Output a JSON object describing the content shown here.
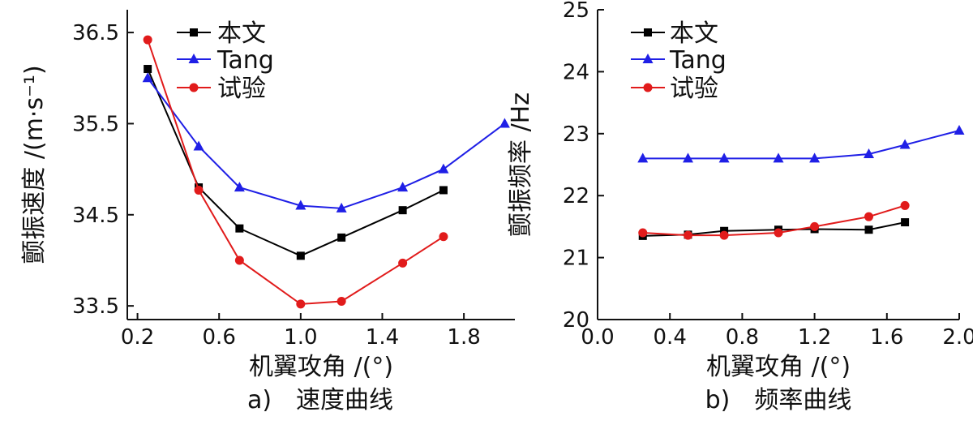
{
  "chart_data": [
    {
      "type": "line",
      "caption": "a)　速度曲线",
      "xlabel": "机翼攻角 /(°)",
      "ylabel": "颤振速度 /(m·s⁻¹)",
      "xlim": [
        0.15,
        2.05
      ],
      "ylim": [
        33.35,
        36.75
      ],
      "xticks": [
        "0.2",
        "0.6",
        "1.0",
        "1.4",
        "1.8"
      ],
      "yticks": [
        "33.5",
        "34.5",
        "35.5",
        "36.5"
      ],
      "grid": false,
      "legend_position": "top-left",
      "series": [
        {
          "name": "本文",
          "color": "#000000",
          "marker": "square",
          "x": [
            0.25,
            0.5,
            0.7,
            1.0,
            1.2,
            1.5,
            1.7
          ],
          "y": [
            36.1,
            34.8,
            34.35,
            34.05,
            34.25,
            34.55,
            34.77
          ]
        },
        {
          "name": "Tang",
          "color": "#1f1fe6",
          "marker": "triangle",
          "x": [
            0.25,
            0.5,
            0.7,
            1.0,
            1.2,
            1.5,
            1.7,
            2.0
          ],
          "y": [
            36.0,
            35.25,
            34.8,
            34.6,
            34.57,
            34.8,
            35.0,
            35.5
          ]
        },
        {
          "name": "试验",
          "color": "#e11b1b",
          "marker": "circle",
          "x": [
            0.25,
            0.5,
            0.7,
            1.0,
            1.2,
            1.5,
            1.7
          ],
          "y": [
            36.42,
            34.77,
            34.0,
            33.52,
            33.55,
            33.97,
            34.26
          ]
        }
      ]
    },
    {
      "type": "line",
      "caption": "b)　频率曲线",
      "xlabel": "机翼攻角 /(°)",
      "ylabel": "颤振频率 /Hz",
      "xlim": [
        0.0,
        2.0
      ],
      "ylim": [
        20,
        25
      ],
      "xticks": [
        "0.0",
        "0.4",
        "0.8",
        "1.2",
        "1.6",
        "2.0"
      ],
      "yticks": [
        "20",
        "21",
        "22",
        "23",
        "24",
        "25"
      ],
      "grid": false,
      "legend_position": "top-left",
      "series": [
        {
          "name": "本文",
          "color": "#000000",
          "marker": "square",
          "x": [
            0.25,
            0.5,
            0.7,
            1.0,
            1.2,
            1.5,
            1.7
          ],
          "y": [
            21.35,
            21.37,
            21.43,
            21.45,
            21.46,
            21.45,
            21.57
          ]
        },
        {
          "name": "Tang",
          "color": "#1f1fe6",
          "marker": "triangle",
          "x": [
            0.25,
            0.5,
            0.7,
            1.0,
            1.2,
            1.5,
            1.7,
            2.0
          ],
          "y": [
            22.6,
            22.6,
            22.6,
            22.6,
            22.6,
            22.67,
            22.82,
            23.05
          ]
        },
        {
          "name": "试验",
          "color": "#e11b1b",
          "marker": "circle",
          "x": [
            0.25,
            0.5,
            0.7,
            1.0,
            1.2,
            1.5,
            1.7
          ],
          "y": [
            21.4,
            21.36,
            21.36,
            21.4,
            21.5,
            21.66,
            21.84
          ]
        }
      ]
    }
  ]
}
